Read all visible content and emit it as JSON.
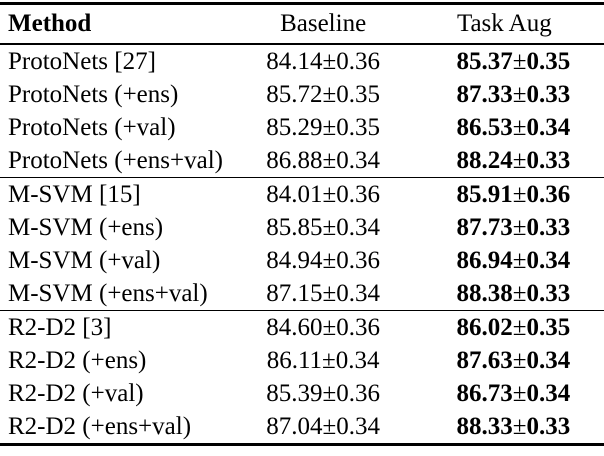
{
  "table": {
    "columns": [
      "Method",
      "Baseline",
      "Task Aug"
    ],
    "symbols": {
      "pm": "±"
    },
    "rows": [
      {
        "method": "ProtoNets [27]",
        "baseline": "84.14±0.36",
        "task_aug_mean": "85.37",
        "task_aug_std": "0.35"
      },
      {
        "method": "ProtoNets (+ens)",
        "baseline": "85.72±0.35",
        "task_aug_mean": "87.33",
        "task_aug_std": "0.33"
      },
      {
        "method": "ProtoNets (+val)",
        "baseline": "85.29±0.35",
        "task_aug_mean": "86.53",
        "task_aug_std": "0.34"
      },
      {
        "method": "ProtoNets (+ens+val)",
        "baseline": "86.88±0.34",
        "task_aug_mean": "88.24",
        "task_aug_std": "0.33"
      },
      {
        "method": "M-SVM [15]",
        "baseline": "84.01±0.36",
        "task_aug_mean": "85.91",
        "task_aug_std": "0.36"
      },
      {
        "method": "M-SVM (+ens)",
        "baseline": "85.85±0.34",
        "task_aug_mean": "87.73",
        "task_aug_std": "0.33"
      },
      {
        "method": "M-SVM (+val)",
        "baseline": "84.94±0.36",
        "task_aug_mean": "86.94",
        "task_aug_std": "0.34"
      },
      {
        "method": "M-SVM (+ens+val)",
        "baseline": "87.15±0.34",
        "task_aug_mean": "88.38",
        "task_aug_std": "0.33"
      },
      {
        "method": "R2-D2 [3]",
        "baseline": "84.60±0.36",
        "task_aug_mean": "86.02",
        "task_aug_std": "0.35"
      },
      {
        "method": "R2-D2 (+ens)",
        "baseline": "86.11±0.34",
        "task_aug_mean": "87.63",
        "task_aug_std": "0.34"
      },
      {
        "method": "R2-D2 (+val)",
        "baseline": "85.39±0.36",
        "task_aug_mean": "86.73",
        "task_aug_std": "0.34"
      },
      {
        "method": "R2-D2 (+ens+val)",
        "baseline": "87.04±0.34",
        "task_aug_mean": "88.33",
        "task_aug_std": "0.33"
      }
    ]
  }
}
